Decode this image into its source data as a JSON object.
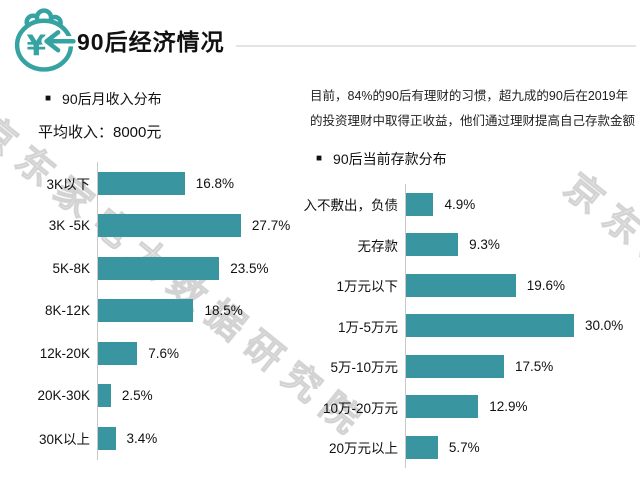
{
  "page": {
    "background": "#ffffff",
    "accent": "#3996A0"
  },
  "header": {
    "title": "90后经济情况",
    "icon": "money-bag-yuan-arrow"
  },
  "icons": {
    "bullet": "■",
    "yuan": "¥"
  },
  "watermark": "京东家电大数据研究院",
  "intro": {
    "line1": "目前，84%的90后有理财的习惯，超九成的90后在2019年",
    "line2": "的投资理财中取得正收益，他们通过理财提高自己存款金额"
  },
  "chart_data": [
    {
      "type": "bar",
      "orientation": "horizontal",
      "title": "90后月收入分布",
      "subtitle": "平均收入：8000元",
      "categories": [
        "3K以下",
        "3K -5K",
        "5K-8K",
        "8K-12K",
        "12k-20K",
        "20K-30K",
        "30K以上"
      ],
      "values": [
        16.8,
        27.7,
        23.5,
        18.5,
        7.6,
        2.5,
        3.4
      ],
      "unit": "%",
      "bar_color": "#3996A0",
      "xlim": [
        0,
        30
      ],
      "grid": false,
      "value_labels": "outside-end"
    },
    {
      "type": "bar",
      "orientation": "horizontal",
      "title": "90后当前存款分布",
      "subtitle": "",
      "categories": [
        "入不敷出，负债",
        "无存款",
        "1万元以下",
        "1万-5万元",
        "5万-10万元",
        "10万-20万元",
        "20万元以上"
      ],
      "values": [
        4.9,
        9.3,
        19.6,
        30.0,
        17.5,
        12.9,
        5.7
      ],
      "unit": "%",
      "bar_color": "#3996A0",
      "xlim": [
        0,
        32
      ],
      "grid": false,
      "value_labels": "outside-end"
    }
  ]
}
